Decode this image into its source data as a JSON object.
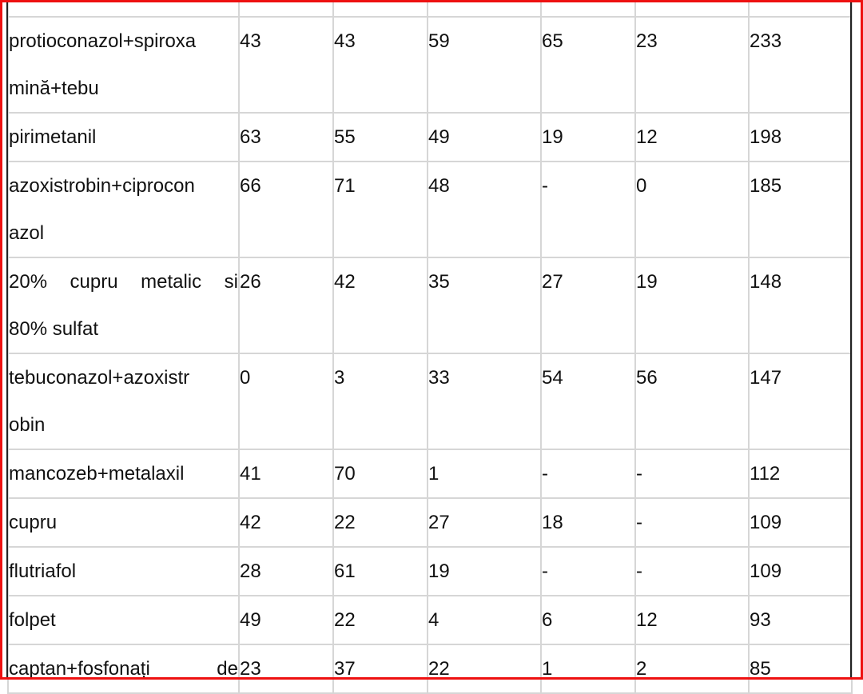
{
  "table": {
    "rows": [
      {
        "name_lines": [
          "protioconazol+spiroxa",
          "mină+tebu"
        ],
        "justify_first": false,
        "values": [
          "43",
          "43",
          "59",
          "65",
          "23",
          "233"
        ]
      },
      {
        "name_lines": [
          "pirimetanil"
        ],
        "justify_first": false,
        "values": [
          "63",
          "55",
          "49",
          "19",
          "12",
          "198"
        ]
      },
      {
        "name_lines": [
          "azoxistrobin+ciprocon",
          "azol"
        ],
        "justify_first": false,
        "values": [
          "66",
          "71",
          "48",
          "-",
          "0",
          "185"
        ]
      },
      {
        "name_lines": [
          "20% cupru metalic si",
          "80% sulfat"
        ],
        "justify_first": true,
        "values": [
          "26",
          "42",
          "35",
          "27",
          "19",
          "148"
        ]
      },
      {
        "name_lines": [
          "tebuconazol+azoxistr",
          "obin"
        ],
        "justify_first": false,
        "values": [
          "0",
          "3",
          "33",
          "54",
          "56",
          "147"
        ]
      },
      {
        "name_lines": [
          "mancozeb+metalaxil"
        ],
        "justify_first": false,
        "values": [
          "41",
          "70",
          "1",
          "-",
          "-",
          "112"
        ]
      },
      {
        "name_lines": [
          "cupru"
        ],
        "justify_first": false,
        "values": [
          "42",
          "22",
          "27",
          "18",
          "-",
          "109"
        ]
      },
      {
        "name_lines": [
          "flutriafol"
        ],
        "justify_first": false,
        "values": [
          "28",
          "61",
          "19",
          "-",
          "-",
          "109"
        ]
      },
      {
        "name_lines": [
          "folpet"
        ],
        "justify_first": false,
        "values": [
          "49",
          "22",
          "4",
          "6",
          "12",
          "93"
        ]
      },
      {
        "name_lines": [
          "captan+fosfonați de"
        ],
        "justify_first": true,
        "values": [
          "23",
          "37",
          "22",
          "1",
          "2",
          "85"
        ]
      }
    ]
  },
  "colors": {
    "frame": "#ee1111",
    "grid": "#d6d6d6",
    "text": "#111111"
  }
}
